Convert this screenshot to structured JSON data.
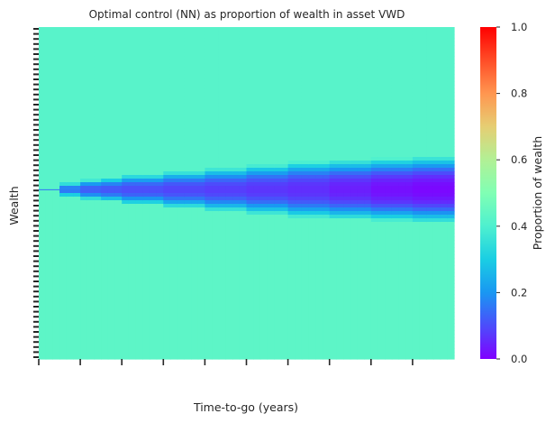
{
  "chart_data": {
    "type": "heatmap",
    "title": "Optimal control (NN) as proportion of wealth in asset VWD",
    "xlabel": "Time-to-go (years)",
    "ylabel": "Wealth",
    "x_tick_count": 10,
    "x_tick_labels_shown": false,
    "y_tick_labels_shown": false,
    "colormap": "rainbow",
    "colorbar": {
      "label": "Proportion of wealth",
      "range": [
        0.0,
        1.0
      ],
      "ticks": [
        "0.0",
        "0.2",
        "0.4",
        "0.6",
        "0.8",
        "1.0"
      ]
    },
    "background_value": 0.42,
    "lower_region_value": 0.43,
    "band_center_fraction": 0.49,
    "band_profile": [
      {
        "x_fraction": 0.05,
        "half_width_fraction": 0.02,
        "min_value": 0.15
      },
      {
        "x_fraction": 0.1,
        "half_width_fraction": 0.03,
        "min_value": 0.12
      },
      {
        "x_fraction": 0.15,
        "half_width_fraction": 0.035,
        "min_value": 0.11
      },
      {
        "x_fraction": 0.2,
        "half_width_fraction": 0.045,
        "min_value": 0.1
      },
      {
        "x_fraction": 0.3,
        "half_width_fraction": 0.055,
        "min_value": 0.09
      },
      {
        "x_fraction": 0.4,
        "half_width_fraction": 0.065,
        "min_value": 0.08
      },
      {
        "x_fraction": 0.5,
        "half_width_fraction": 0.075,
        "min_value": 0.07
      },
      {
        "x_fraction": 0.6,
        "half_width_fraction": 0.085,
        "min_value": 0.06
      },
      {
        "x_fraction": 0.7,
        "half_width_fraction": 0.09,
        "min_value": 0.04
      },
      {
        "x_fraction": 0.8,
        "half_width_fraction": 0.095,
        "min_value": 0.02
      },
      {
        "x_fraction": 0.9,
        "half_width_fraction": 0.1,
        "min_value": 0.01
      },
      {
        "x_fraction": 1.0,
        "half_width_fraction": 0.105,
        "min_value": 0.0
      }
    ]
  }
}
